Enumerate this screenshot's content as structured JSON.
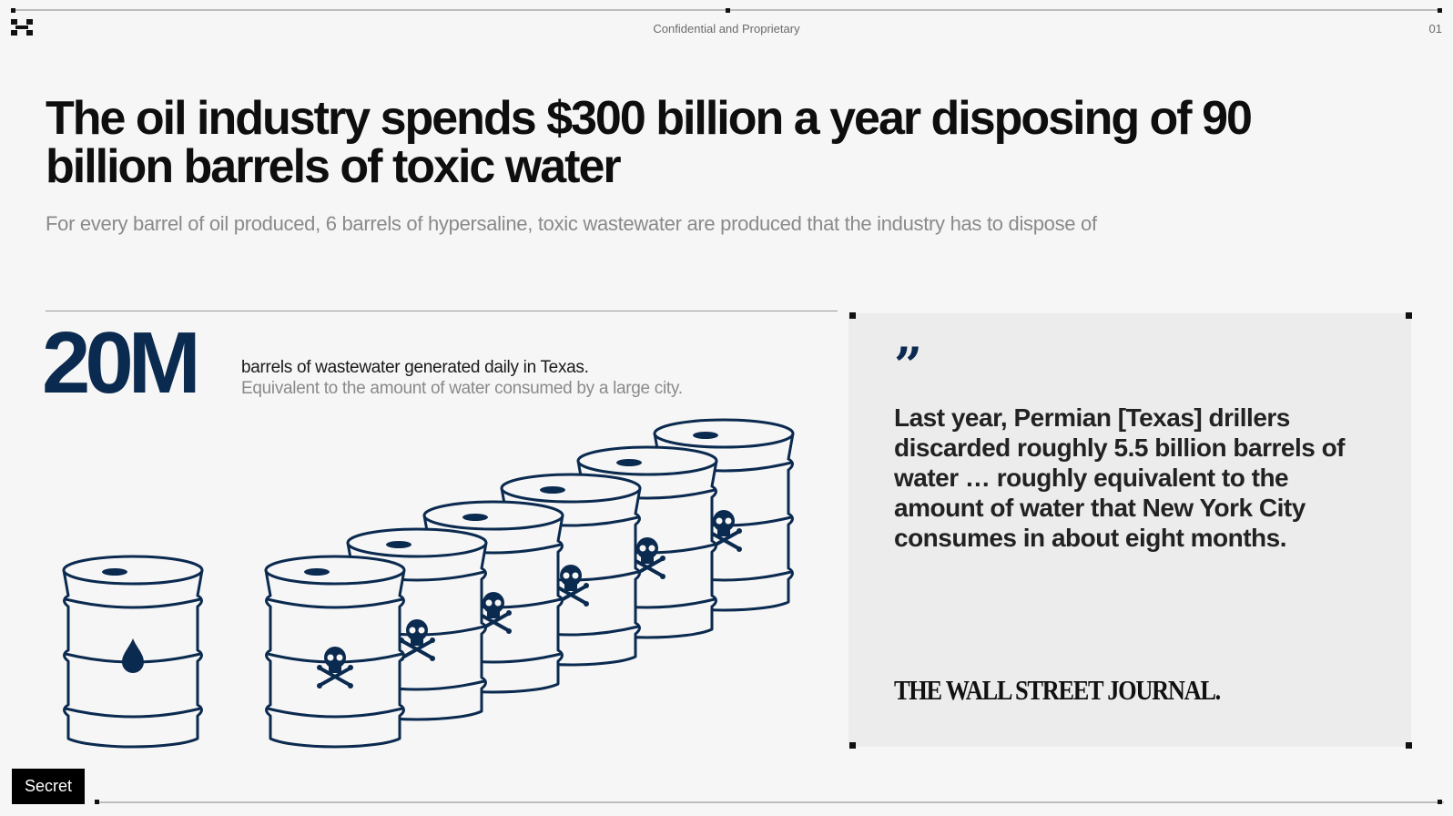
{
  "header": {
    "label": "Confidential and Proprietary",
    "page_number": "01"
  },
  "title": "The oil industry spends $300 billion a year disposing of 90 billion barrels of toxic water",
  "subtitle": "For every barrel of oil produced, 6 barrels of hypersaline, toxic wastewater are produced that the industry has to dispose of",
  "stat": {
    "number": "20M",
    "description": "barrels of wastewater generated daily in Texas.",
    "subdescription": "Equivalent to the amount of water consumed by a large city."
  },
  "illustration": {
    "oil_barrel_icon": "oil-drop-icon",
    "toxic_barrel_icon": "skull-crossbones-icon",
    "oil_barrel_count": 1,
    "wastewater_barrel_count": 6
  },
  "quote": {
    "mark": "”",
    "text": "Last year, Permian [Texas] drillers discarded roughly 5.5 billion barrels of water … roughly equivalent to the amount of water that New York City consumes in about eight months.",
    "source": "THE WALL STREET JOURNAL."
  },
  "footer": {
    "classification": "Secret"
  },
  "colors": {
    "navy": "#0b2a4f",
    "background": "#f6f6f6",
    "quote_background": "#ececec"
  }
}
